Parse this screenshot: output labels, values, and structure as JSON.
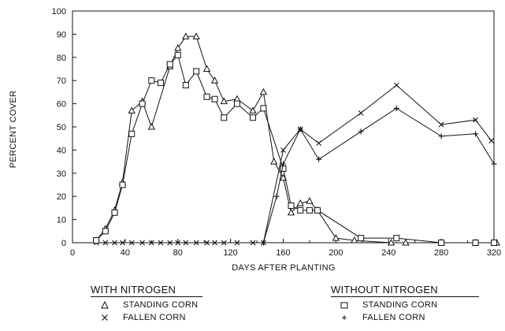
{
  "chart_data": {
    "type": "line",
    "xlabel": "DAYS AFTER PLANTING",
    "ylabel": "PERCENT COVER",
    "xlim": [
      0,
      320
    ],
    "ylim": [
      0,
      100
    ],
    "x_ticks": [
      "0",
      "40",
      "80",
      "120",
      "160",
      "200",
      "240",
      "280",
      "320"
    ],
    "y_ticks": [
      "0",
      "10",
      "20",
      "30",
      "40",
      "50",
      "60",
      "70",
      "80",
      "90",
      "100"
    ],
    "grid": false,
    "legend": {
      "groups": [
        {
          "title": "WITH NITROGEN",
          "entries": [
            {
              "symbol": "△",
              "label": "STANDING CORN"
            },
            {
              "symbol": "×",
              "label": "FALLEN CORN"
            }
          ]
        },
        {
          "title": "WITHOUT NITROGEN",
          "entries": [
            {
              "symbol": "□",
              "label": "STANDING CORN"
            },
            {
              "symbol": "+",
              "label": "FALLEN CORN"
            }
          ]
        }
      ]
    },
    "series": [
      {
        "name": "STANDING CORN",
        "group": "WITH NITROGEN",
        "marker": "triangle",
        "x": [
          18,
          25,
          32,
          38,
          45,
          53,
          60,
          74,
          80,
          86,
          94,
          102,
          108,
          115,
          125,
          137,
          145,
          153,
          160,
          166,
          173,
          180,
          186,
          200,
          214,
          242,
          253,
          280,
          306,
          322
        ],
        "y": [
          1,
          6,
          14,
          26,
          57,
          61,
          50,
          76,
          84,
          89,
          89,
          75,
          70,
          61,
          62,
          57,
          65,
          35,
          28,
          13,
          17,
          18,
          14,
          2,
          1,
          0,
          0,
          0,
          0,
          0
        ]
      },
      {
        "name": "FALLEN CORN",
        "group": "WITH NITROGEN",
        "marker": "x",
        "x": [
          18,
          25,
          32,
          38,
          45,
          53,
          60,
          67,
          74,
          80,
          86,
          94,
          102,
          108,
          115,
          125,
          137,
          145,
          160,
          173,
          187,
          219,
          246,
          280,
          306,
          318
        ],
        "y": [
          0,
          0,
          0,
          0,
          0,
          0,
          0,
          0,
          0,
          0,
          0,
          0,
          0,
          0,
          0,
          0,
          0,
          0,
          40,
          49,
          43,
          56,
          68,
          51,
          53,
          44
        ]
      },
      {
        "name": "STANDING CORN",
        "group": "WITHOUT NITROGEN",
        "marker": "square",
        "x": [
          18,
          25,
          32,
          38,
          45,
          53,
          60,
          67,
          74,
          80,
          86,
          94,
          102,
          108,
          115,
          125,
          137,
          145,
          160,
          166,
          173,
          180,
          186,
          219,
          246,
          280,
          306,
          320
        ],
        "y": [
          1,
          5,
          13,
          25,
          47,
          60,
          70,
          69,
          77,
          81,
          68,
          74,
          63,
          62,
          54,
          60,
          54,
          58,
          32,
          16,
          14,
          14,
          14,
          2,
          2,
          0,
          0,
          0
        ]
      },
      {
        "name": "FALLEN CORN",
        "group": "WITHOUT NITROGEN",
        "marker": "plus",
        "x": [
          145,
          155,
          160,
          173,
          187,
          219,
          246,
          280,
          306,
          320
        ],
        "y": [
          0,
          20,
          34,
          49,
          36,
          48,
          58,
          46,
          47,
          34
        ]
      }
    ]
  }
}
